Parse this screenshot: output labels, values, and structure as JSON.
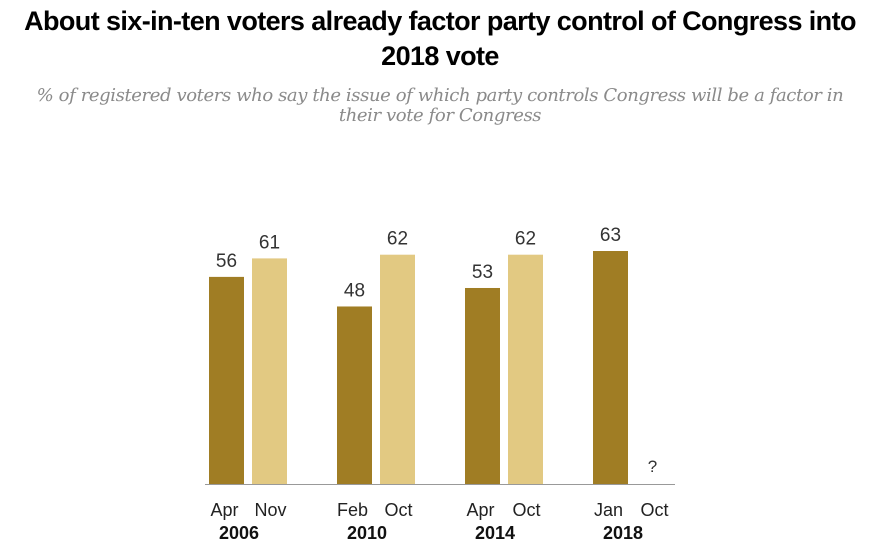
{
  "chart_data": {
    "type": "bar",
    "title": "About six-in-ten voters already factor party control of Congress into 2018 vote",
    "subtitle": "% of registered voters who say the issue of which party controls Congress will be a factor in their vote for Congress",
    "groups": [
      {
        "year": "2006",
        "bars": [
          {
            "label": "Apr",
            "value": 56,
            "shade": "dark"
          },
          {
            "label": "Nov",
            "value": 61,
            "shade": "light"
          }
        ]
      },
      {
        "year": "2010",
        "bars": [
          {
            "label": "Feb",
            "value": 48,
            "shade": "dark"
          },
          {
            "label": "Oct",
            "value": 62,
            "shade": "light"
          }
        ]
      },
      {
        "year": "2014",
        "bars": [
          {
            "label": "Apr",
            "value": 53,
            "shade": "dark"
          },
          {
            "label": "Oct",
            "value": 62,
            "shade": "light"
          }
        ]
      },
      {
        "year": "2018",
        "bars": [
          {
            "label": "Jan",
            "value": 63,
            "shade": "dark"
          },
          {
            "label": "Oct",
            "value": null,
            "display": "?",
            "shade": "light"
          }
        ]
      }
    ],
    "ylim": [
      0,
      63
    ],
    "grid": false,
    "colors": {
      "dark": "#a07d24",
      "light": "#e2c982",
      "axis": "#999999"
    }
  }
}
